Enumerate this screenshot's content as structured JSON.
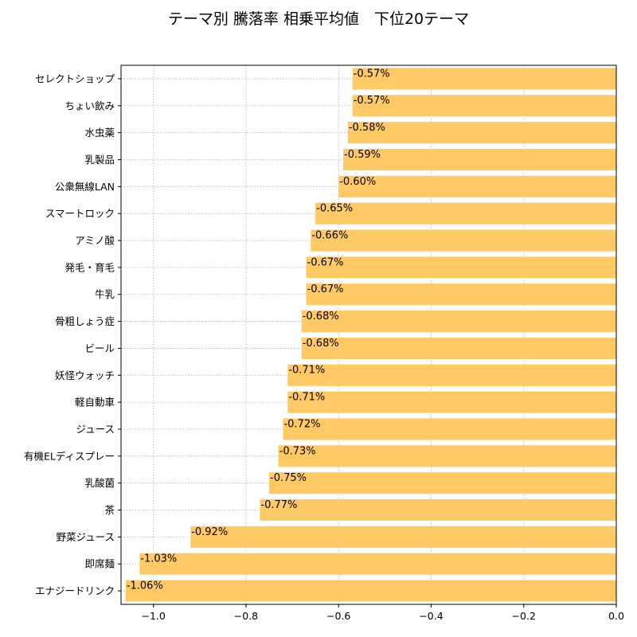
{
  "chart_data": {
    "type": "bar",
    "orientation": "horizontal",
    "title": "テーマ別 騰落率 相乗平均値　下位20テーマ",
    "xlabel": "",
    "ylabel": "",
    "categories": [
      "セレクトショップ",
      "ちょい飲み",
      "水虫薬",
      "乳製品",
      "公衆無線LAN",
      "スマートロック",
      "アミノ酸",
      "発毛・育毛",
      "牛乳",
      "骨粗しょう症",
      "ビール",
      "妖怪ウォッチ",
      "軽自動車",
      "ジュース",
      "有機ELディスプレー",
      "乳酸菌",
      "茶",
      "野菜ジュース",
      "即席麺",
      "エナジードリンク"
    ],
    "values": [
      -0.57,
      -0.57,
      -0.58,
      -0.59,
      -0.6,
      -0.65,
      -0.66,
      -0.67,
      -0.67,
      -0.68,
      -0.68,
      -0.71,
      -0.71,
      -0.72,
      -0.73,
      -0.75,
      -0.77,
      -0.92,
      -1.03,
      -1.06
    ],
    "data_labels": [
      "-0.57%",
      "-0.57%",
      "-0.58%",
      "-0.59%",
      "-0.60%",
      "-0.65%",
      "-0.66%",
      "-0.67%",
      "-0.67%",
      "-0.68%",
      "-0.68%",
      "-0.71%",
      "-0.71%",
      "-0.72%",
      "-0.73%",
      "-0.75%",
      "-0.77%",
      "-0.92%",
      "-1.03%",
      "-1.06%"
    ],
    "xlim": [
      -1.07,
      0.0
    ],
    "xticks": [
      -1.0,
      -0.8,
      -0.6,
      -0.4,
      -0.2,
      0.0
    ],
    "xtick_labels": [
      "−1.0",
      "−0.8",
      "−0.6",
      "−0.4",
      "−0.2",
      "0.0"
    ],
    "grid": true,
    "bar_color": "#ffc966"
  }
}
